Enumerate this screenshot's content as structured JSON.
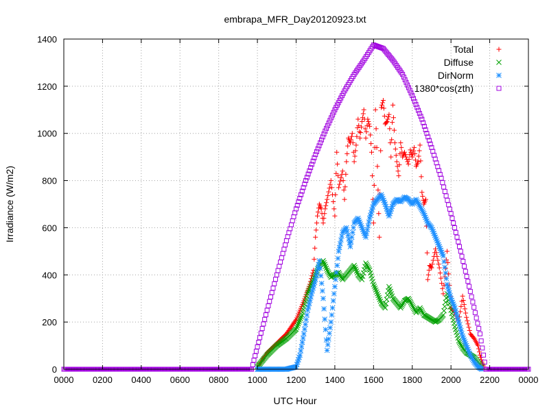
{
  "chart_data": {
    "type": "scatter",
    "title": "embrapa_MFR_Day20120923.txt",
    "xlabel": "UTC Hour",
    "ylabel": "Irradiance (W/m2)",
    "xlim": [
      0,
      2400
    ],
    "ylim": [
      0,
      1400
    ],
    "grid": true,
    "legend_position": "top-right",
    "x_tick_labels": [
      "0000",
      "0200",
      "0400",
      "0600",
      "0800",
      "1000",
      "1200",
      "1400",
      "1600",
      "1800",
      "2000",
      "2200",
      "0000"
    ],
    "y_tick_labels": [
      "0",
      "200",
      "400",
      "600",
      "800",
      "1000",
      "1200",
      "1400"
    ],
    "series": [
      {
        "name": "Total",
        "marker": "plus",
        "color": "#ff0000",
        "x": [
          1010,
          1050,
          1100,
          1150,
          1200,
          1240,
          1270,
          1290,
          1300,
          1310,
          1320,
          1330,
          1340,
          1350,
          1360,
          1380,
          1400,
          1410,
          1420,
          1440,
          1450,
          1460,
          1470,
          1480,
          1490,
          1500,
          1510,
          1520,
          1530,
          1540,
          1550,
          1560,
          1570,
          1580,
          1590,
          1600,
          1610,
          1620,
          1630,
          1640,
          1650,
          1660,
          1670,
          1680,
          1690,
          1700,
          1710,
          1720,
          1730,
          1740,
          1750,
          1760,
          1780,
          1790,
          1800,
          1810,
          1820,
          1830,
          1840,
          1850,
          1860,
          1870,
          1880,
          1890,
          1900,
          1920,
          1940,
          1960,
          1980,
          2000,
          2020,
          2040,
          2060,
          2080,
          2100,
          2120,
          2140,
          2150,
          2160,
          2170
        ],
        "y": [
          20,
          70,
          110,
          150,
          210,
          290,
          360,
          420,
          560,
          650,
          700,
          680,
          620,
          680,
          720,
          800,
          650,
          920,
          770,
          840,
          720,
          880,
          980,
          960,
          1000,
          880,
          950,
          1060,
          980,
          1050,
          1100,
          980,
          1060,
          1030,
          920,
          620,
          1100,
          860,
          560,
          1110,
          1140,
          1040,
          1050,
          1080,
          900,
          1120,
          960,
          880,
          820,
          960,
          900,
          920,
          870,
          930,
          900,
          940,
          860,
          880,
          950,
          750,
          700,
          720,
          380,
          440,
          430,
          510,
          430,
          320,
          500,
          260,
          240,
          200,
          310,
          220,
          150,
          130,
          100,
          60,
          30,
          10
        ]
      },
      {
        "name": "Diffuse",
        "marker": "cross",
        "color": "#00a000",
        "x": [
          1000,
          1050,
          1100,
          1150,
          1200,
          1230,
          1260,
          1290,
          1320,
          1340,
          1360,
          1380,
          1400,
          1420,
          1440,
          1460,
          1480,
          1500,
          1520,
          1540,
          1560,
          1580,
          1600,
          1620,
          1640,
          1660,
          1680,
          1700,
          1720,
          1740,
          1760,
          1780,
          1800,
          1820,
          1840,
          1860,
          1880,
          1900,
          1920,
          1940,
          1960,
          1980,
          2000,
          2020,
          2040,
          2060,
          2080,
          2100,
          2120,
          2140,
          2160
        ],
        "y": [
          10,
          60,
          100,
          130,
          170,
          230,
          320,
          380,
          440,
          460,
          420,
          390,
          400,
          410,
          380,
          400,
          420,
          440,
          400,
          380,
          450,
          420,
          360,
          320,
          280,
          260,
          350,
          300,
          280,
          260,
          290,
          300,
          270,
          240,
          260,
          230,
          220,
          210,
          200,
          210,
          230,
          320,
          250,
          180,
          120,
          90,
          70,
          60,
          50,
          30,
          10
        ]
      },
      {
        "name": "DirNorm",
        "marker": "star",
        "color": "#1e90ff",
        "x": [
          1000,
          1050,
          1100,
          1150,
          1200,
          1220,
          1240,
          1260,
          1280,
          1300,
          1320,
          1340,
          1360,
          1380,
          1400,
          1420,
          1440,
          1460,
          1480,
          1500,
          1520,
          1540,
          1560,
          1580,
          1600,
          1620,
          1640,
          1660,
          1680,
          1700,
          1720,
          1740,
          1760,
          1780,
          1800,
          1820,
          1840,
          1860,
          1880,
          1900,
          1920,
          1940,
          1960,
          1980,
          2000,
          2020,
          2040,
          2060,
          2080,
          2100,
          2120,
          2140,
          2160
        ],
        "y": [
          0,
          0,
          0,
          0,
          10,
          60,
          150,
          250,
          320,
          380,
          460,
          300,
          80,
          200,
          350,
          500,
          580,
          600,
          520,
          620,
          640,
          600,
          560,
          640,
          700,
          720,
          740,
          700,
          650,
          700,
          720,
          710,
          730,
          720,
          700,
          720,
          690,
          660,
          620,
          600,
          560,
          520,
          480,
          360,
          300,
          260,
          200,
          140,
          100,
          60,
          30,
          10,
          0
        ]
      },
      {
        "name": "1380*cos(zth)",
        "marker": "square",
        "color": "#a000e0",
        "model": "clear_sky_curve",
        "x": [
          0,
          970,
          1000,
          1050,
          1100,
          1150,
          1200,
          1250,
          1300,
          1350,
          1400,
          1450,
          1500,
          1550,
          1600,
          1650,
          1700,
          1750,
          1800,
          1850,
          1900,
          1950,
          2000,
          2050,
          2100,
          2150,
          2180,
          2400
        ],
        "y": [
          0,
          0,
          95,
          250,
          400,
          545,
          680,
          800,
          910,
          1010,
          1100,
          1180,
          1250,
          1310,
          1375,
          1360,
          1310,
          1250,
          1160,
          1060,
          940,
          810,
          660,
          500,
          330,
          150,
          0,
          0
        ]
      }
    ]
  }
}
